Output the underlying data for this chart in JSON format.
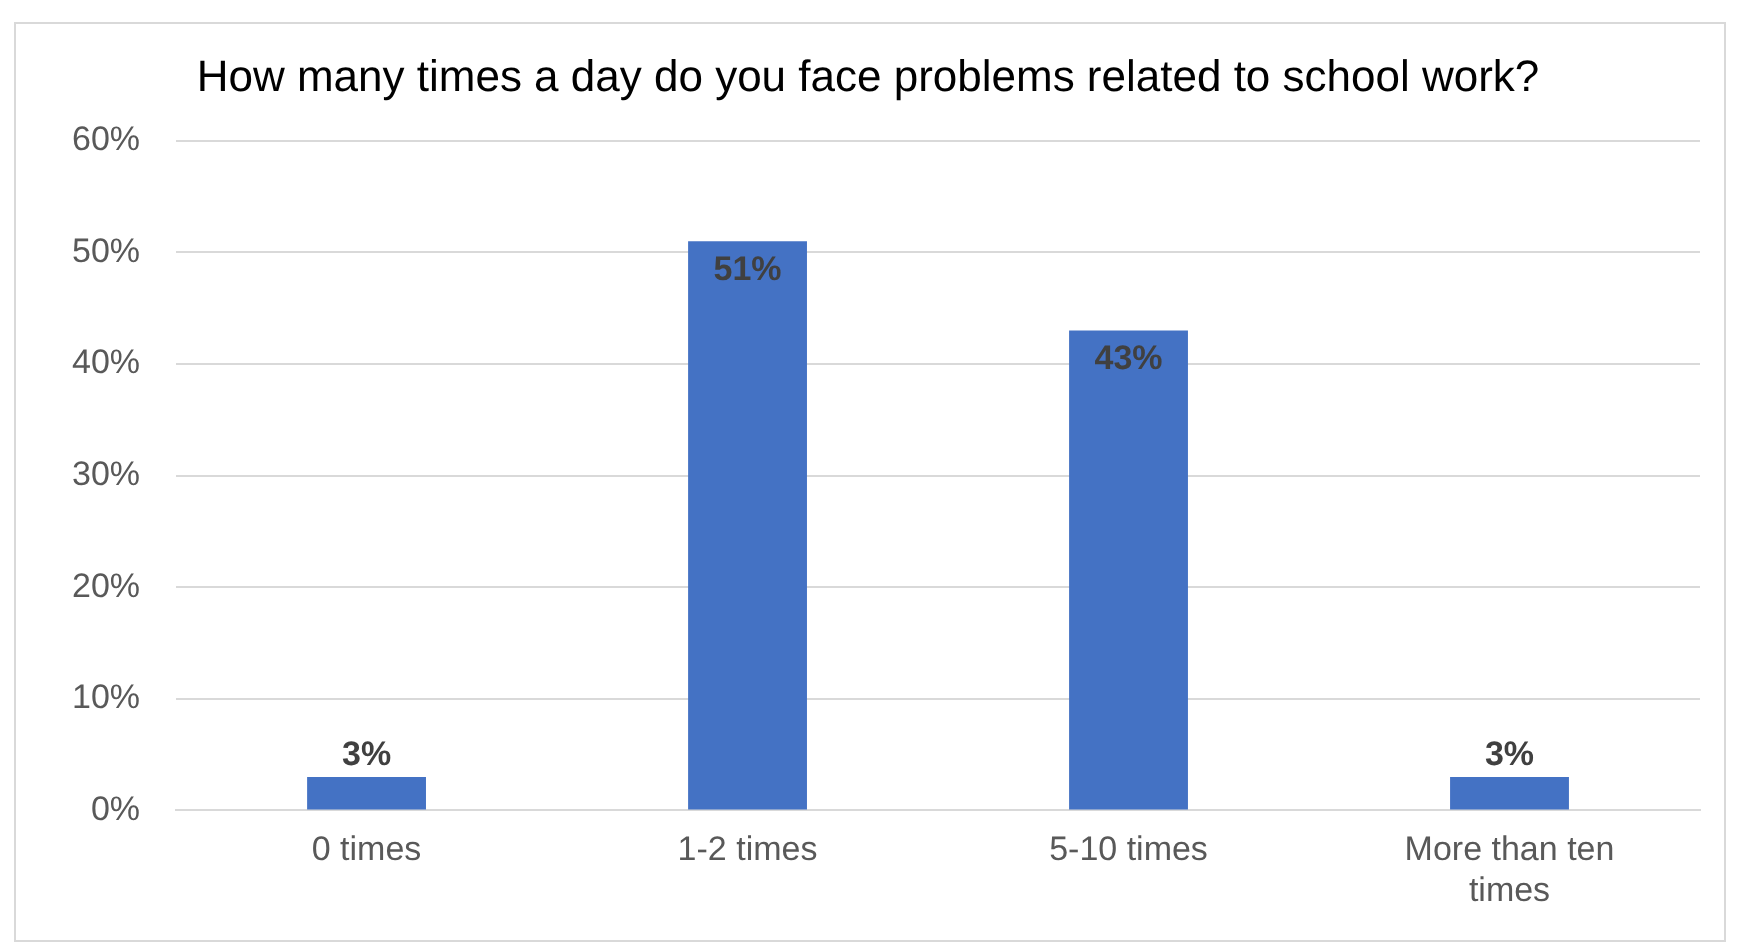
{
  "chart_data": {
    "type": "bar",
    "title": "How many times a day do you face problems related to school work?",
    "categories": [
      "0 times",
      "1-2 times",
      "5-10 times",
      "More than ten times"
    ],
    "values": [
      3,
      51,
      43,
      3
    ],
    "color": "#4472c4",
    "ylim": [
      0,
      60
    ],
    "yticks": [
      {
        "value": 0,
        "label": "0%"
      },
      {
        "value": 10,
        "label": "10%"
      },
      {
        "value": 20,
        "label": "20%"
      },
      {
        "value": 30,
        "label": "30%"
      },
      {
        "value": 40,
        "label": "40%"
      },
      {
        "value": 50,
        "label": "50%"
      },
      {
        "value": 60,
        "label": "60%"
      }
    ],
    "value_labels": [
      "3%",
      "51%",
      "43%",
      "3%"
    ],
    "grid": "y",
    "legend": false
  }
}
